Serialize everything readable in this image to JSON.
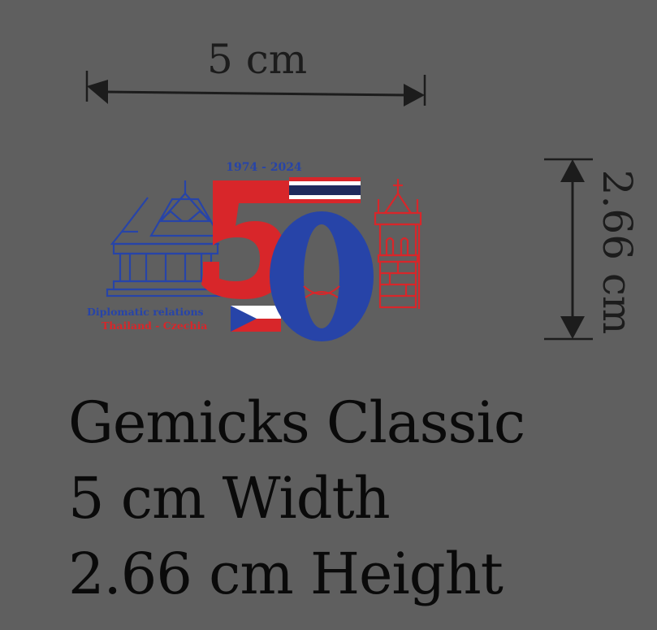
{
  "dimensions": {
    "width_label": "5 cm",
    "height_label": "2.66 cm"
  },
  "logo": {
    "years": "1974 - 2024",
    "number": "50",
    "line1": "Diplomatic relations",
    "line2": "Thailand - Czechia"
  },
  "info": {
    "line1": "Gemicks Classic",
    "line2": "5 cm Width",
    "line3": "2.66 cm Height"
  },
  "colors": {
    "background": "#5f5f5f",
    "blue": "#2744a8",
    "red": "#d8262a",
    "dark": "#1c1c1c"
  }
}
